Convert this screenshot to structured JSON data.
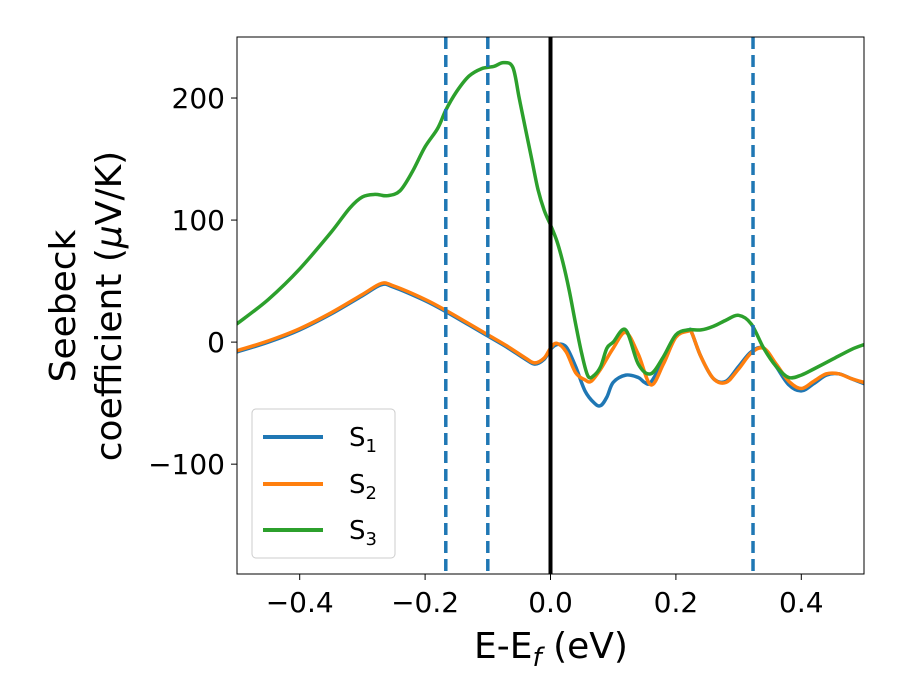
{
  "chart_data": {
    "type": "line",
    "xlabel": {
      "main": "E-E",
      "sub": "f",
      "unit": " (eV)"
    },
    "ylabel": {
      "line1": "Seebeck",
      "line2_prefix": "coefficient  (",
      "mu": "μ",
      "line2_suffix": "V/K)"
    },
    "xlim": [
      -0.5,
      0.5
    ],
    "ylim": [
      -190,
      250
    ],
    "xticks": [
      -0.4,
      -0.2,
      0.0,
      0.2,
      0.4
    ],
    "xtick_labels": [
      "−0.4",
      "−0.2",
      "0.0",
      "0.2",
      "0.4"
    ],
    "yticks": [
      -100,
      0,
      100,
      200
    ],
    "ytick_labels": [
      "−100",
      "0",
      "100",
      "200"
    ],
    "grid": false,
    "legend_position": "lower-left",
    "vlines": [
      {
        "name": "fermi-level",
        "x": 0.0,
        "color": "#000000",
        "style": "solid"
      },
      {
        "name": "marker-1",
        "x": -0.167,
        "color": "#1f77b4",
        "style": "dashed"
      },
      {
        "name": "marker-2",
        "x": -0.1,
        "color": "#1f77b4",
        "style": "dashed"
      },
      {
        "name": "marker-3",
        "x": 0.323,
        "color": "#1f77b4",
        "style": "dashed"
      }
    ],
    "series": [
      {
        "name": "S",
        "sub": "1",
        "color": "#1f77b4",
        "x": [
          -0.5,
          -0.45,
          -0.4,
          -0.35,
          -0.3,
          -0.27,
          -0.25,
          -0.2,
          -0.167,
          -0.13,
          -0.1,
          -0.07,
          -0.04,
          -0.025,
          -0.01,
          0.0,
          0.01,
          0.025,
          0.04,
          0.055,
          0.07,
          0.08,
          0.09,
          0.1,
          0.12,
          0.14,
          0.15,
          0.16,
          0.18,
          0.2,
          0.22,
          0.225,
          0.24,
          0.26,
          0.28,
          0.3,
          0.32,
          0.34,
          0.36,
          0.38,
          0.4,
          0.42,
          0.44,
          0.46,
          0.48,
          0.5
        ],
        "values": [
          -8,
          0,
          10,
          23,
          38,
          47,
          45,
          34,
          25,
          14,
          5,
          -4,
          -14,
          -18,
          -14,
          -6,
          -2,
          -4,
          -20,
          -40,
          -50,
          -52,
          -45,
          -33,
          -27,
          -29,
          -33,
          -33,
          -15,
          5,
          10,
          8,
          -12,
          -30,
          -32,
          -20,
          -8,
          -5,
          -20,
          -35,
          -40,
          -34,
          -27,
          -26,
          -30,
          -34
        ]
      },
      {
        "name": "S",
        "sub": "2",
        "color": "#ff7f0e",
        "x": [
          -0.5,
          -0.45,
          -0.4,
          -0.35,
          -0.3,
          -0.27,
          -0.25,
          -0.2,
          -0.167,
          -0.13,
          -0.1,
          -0.07,
          -0.04,
          -0.025,
          -0.01,
          0.0,
          0.01,
          0.025,
          0.04,
          0.055,
          0.065,
          0.08,
          0.1,
          0.12,
          0.14,
          0.16,
          0.18,
          0.2,
          0.22,
          0.225,
          0.24,
          0.26,
          0.28,
          0.3,
          0.32,
          0.34,
          0.36,
          0.38,
          0.4,
          0.42,
          0.44,
          0.46,
          0.48,
          0.5
        ],
        "values": [
          -7,
          1,
          11,
          24,
          39,
          48,
          46,
          35,
          26,
          15,
          6,
          -3,
          -13,
          -17,
          -13,
          -5,
          -1,
          -8,
          -25,
          -31,
          -32,
          -22,
          -5,
          8,
          -10,
          -35,
          -18,
          4,
          9,
          8,
          -12,
          -30,
          -33,
          -22,
          -9,
          -5,
          -18,
          -32,
          -38,
          -32,
          -26,
          -26,
          -30,
          -33
        ]
      },
      {
        "name": "S",
        "sub": "3",
        "color": "#2ca02c",
        "x": [
          -0.5,
          -0.45,
          -0.4,
          -0.35,
          -0.32,
          -0.3,
          -0.28,
          -0.26,
          -0.24,
          -0.22,
          -0.2,
          -0.18,
          -0.167,
          -0.15,
          -0.13,
          -0.11,
          -0.09,
          -0.075,
          -0.06,
          -0.05,
          -0.04,
          -0.03,
          -0.02,
          -0.01,
          0.0,
          0.01,
          0.02,
          0.03,
          0.04,
          0.05,
          0.06,
          0.07,
          0.08,
          0.09,
          0.1,
          0.12,
          0.14,
          0.16,
          0.18,
          0.2,
          0.22,
          0.24,
          0.26,
          0.28,
          0.3,
          0.32,
          0.34,
          0.36,
          0.38,
          0.4,
          0.42,
          0.45,
          0.48,
          0.5
        ],
        "values": [
          15,
          35,
          60,
          90,
          110,
          119,
          121,
          120,
          124,
          140,
          160,
          175,
          190,
          205,
          218,
          224,
          226,
          229,
          225,
          200,
          175,
          150,
          125,
          108,
          96,
          83,
          65,
          42,
          15,
          -10,
          -28,
          -27,
          -20,
          -5,
          0,
          10,
          -18,
          -26,
          -12,
          6,
          10,
          10,
          13,
          18,
          22,
          15,
          -5,
          -20,
          -29,
          -27,
          -22,
          -14,
          -6,
          -2
        ]
      }
    ]
  }
}
